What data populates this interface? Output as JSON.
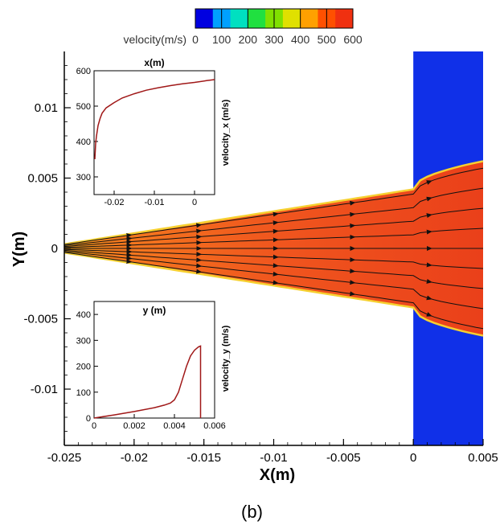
{
  "caption": "(b)",
  "chart_data": {
    "type": "heatmap",
    "main": {
      "xlabel": "X(m)",
      "ylabel": "Y(m)",
      "xlim": [
        -0.025,
        0.005
      ],
      "ylim": [
        -0.014,
        0.014
      ],
      "x_ticks": [
        "-0.025",
        "-0.02",
        "-0.015",
        "-0.01",
        "-0.005",
        "0",
        "0.005"
      ],
      "y_ticks": [
        "0.01",
        "0.005",
        "0",
        "-0.005",
        "-0.01"
      ],
      "colorbar": {
        "label": "velocity(m/s)",
        "range": [
          0,
          600
        ],
        "ticks": [
          "0",
          "100",
          "200",
          "300",
          "400",
          "500",
          "600"
        ],
        "colors": [
          "#0000e0",
          "#00a0ff",
          "#00e0c0",
          "#20e040",
          "#80e000",
          "#e0e000",
          "#ffa000",
          "#ff5000",
          "#f03010"
        ]
      },
      "jet_region": {
        "nozzle_exit_x": 0.0,
        "half_width_at_start": 0.0003,
        "half_width_at_exit": 0.0042,
        "half_width_at_end": 0.0062,
        "block_x_range": [
          0.0,
          0.005
        ],
        "background_color": "#1030e8",
        "jet_color": "#f05a1e"
      },
      "streamline_offsets": [
        -1.0,
        -0.75,
        -0.5,
        -0.25,
        0.0,
        0.25,
        0.5,
        0.75,
        1.0
      ]
    },
    "inset_top": {
      "type": "line",
      "title": "x(m)",
      "ylabel": "velocity_x (m/s)",
      "xlim": [
        -0.025,
        0.005
      ],
      "ylim": [
        250,
        600
      ],
      "x_ticks": [
        "-0.02",
        "-0.01",
        "0"
      ],
      "y_ticks": [
        "600",
        "500",
        "400",
        "300"
      ],
      "x": [
        -0.0248,
        -0.0246,
        -0.0244,
        -0.0242,
        -0.024,
        -0.0235,
        -0.023,
        -0.022,
        -0.02,
        -0.018,
        -0.015,
        -0.012,
        -0.009,
        -0.006,
        -0.003,
        0.0,
        0.003,
        0.005
      ],
      "y": [
        350,
        395,
        415,
        430,
        445,
        465,
        480,
        495,
        510,
        523,
        535,
        545,
        552,
        558,
        563,
        567,
        572,
        575
      ]
    },
    "inset_bottom": {
      "type": "line",
      "title": "y (m)",
      "ylabel": "velocity_y (m/s)",
      "xlim": [
        0,
        0.006
      ],
      "ylim": [
        0,
        450
      ],
      "x_ticks": [
        "0",
        "0.002",
        "0.004",
        "0.006"
      ],
      "y_ticks": [
        "400",
        "300",
        "200",
        "100",
        "0"
      ],
      "x": [
        0.0,
        0.001,
        0.002,
        0.003,
        0.0035,
        0.0038,
        0.004,
        0.0042,
        0.0044,
        0.0046,
        0.0048,
        0.005,
        0.0052,
        0.0053,
        0.0053
      ],
      "y": [
        0,
        12,
        25,
        40,
        50,
        58,
        70,
        100,
        150,
        200,
        240,
        262,
        275,
        278,
        0
      ]
    }
  }
}
